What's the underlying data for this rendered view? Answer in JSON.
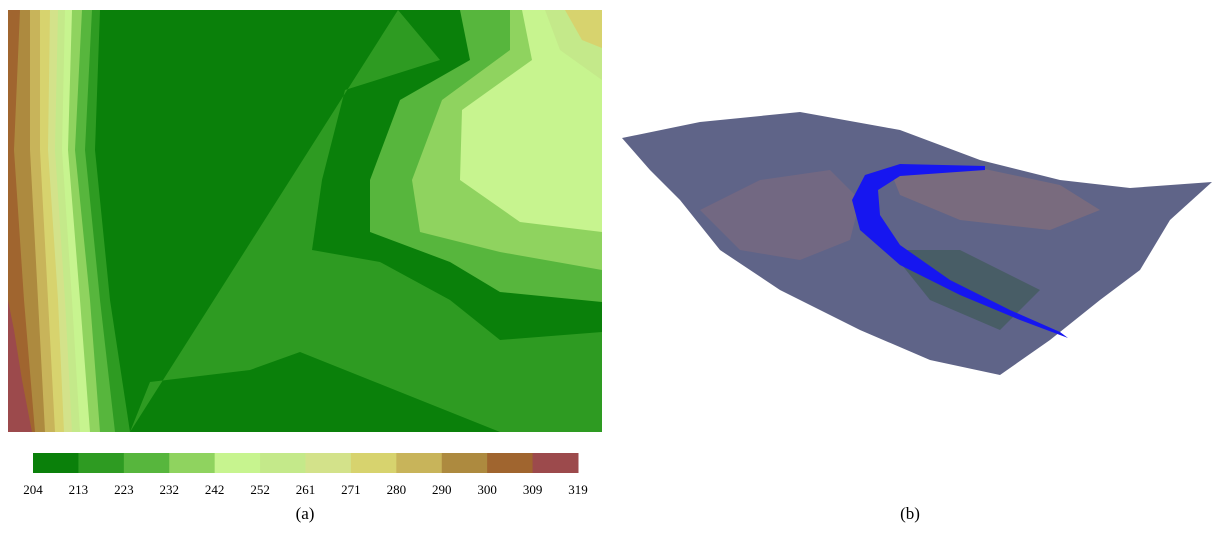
{
  "panels": [
    {
      "caption": "(a)"
    },
    {
      "caption": "(b)"
    }
  ],
  "legend": {
    "ticks": [
      204,
      213,
      223,
      232,
      242,
      252,
      261,
      271,
      280,
      290,
      300,
      309,
      319
    ],
    "colors": [
      "#0a800a",
      "#2e9b22",
      "#57b63d",
      "#8fd35f",
      "#c7f48f",
      "#c4e98a",
      "#d3e28a",
      "#d7d36e",
      "#c8b45a",
      "#ad8a3f",
      "#a0652f",
      "#9c4a4c"
    ]
  }
}
